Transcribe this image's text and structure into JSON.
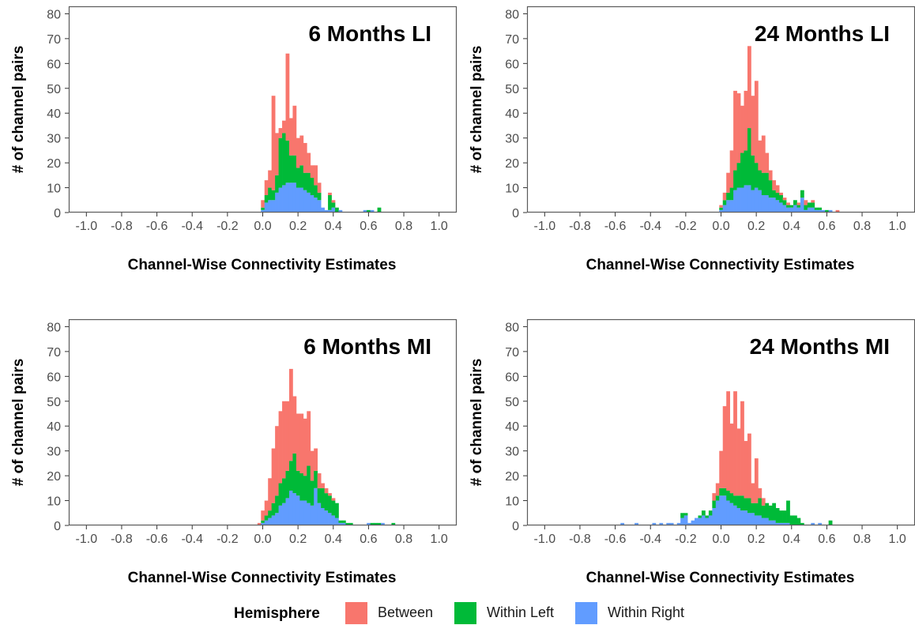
{
  "colors": {
    "Between": "#F8766D",
    "Within Left": "#00BA38",
    "Within Right": "#619CFF"
  },
  "chart_data": [
    {
      "type": "bar",
      "stacked": true,
      "title": "6 Months LI",
      "xlabel": "Channel-Wise Connectivity Estimates",
      "ylabel": "# of channel pairs",
      "xlim": [
        -1.1,
        1.1
      ],
      "ylim": [
        0,
        83
      ],
      "bin_width": 0.02,
      "grid": false,
      "xticks": [
        "-1.0",
        "-0.8",
        "-0.6",
        "-0.4",
        "-0.2",
        "0.0",
        "0.2",
        "0.4",
        "0.6",
        "0.8",
        "1.0"
      ],
      "yticks": [
        "0",
        "10",
        "20",
        "30",
        "40",
        "50",
        "60",
        "70",
        "80"
      ],
      "x": [
        0.0,
        0.02,
        0.04,
        0.06,
        0.08,
        0.1,
        0.12,
        0.14,
        0.16,
        0.18,
        0.2,
        0.22,
        0.24,
        0.26,
        0.28,
        0.3,
        0.32,
        0.34,
        0.36,
        0.38,
        0.4,
        0.42,
        0.44,
        0.54,
        0.56,
        0.58,
        0.6,
        0.62,
        0.64,
        0.66
      ],
      "series": [
        {
          "name": "Within Right",
          "values": [
            1,
            4,
            5,
            5,
            8,
            10,
            11,
            12,
            12,
            12,
            10,
            10,
            9,
            8,
            7,
            6,
            5,
            2,
            1,
            1,
            2,
            0,
            1,
            0,
            0,
            1,
            0,
            1,
            0,
            0
          ]
        },
        {
          "name": "Within Left",
          "values": [
            1,
            3,
            5,
            4,
            7,
            20,
            21,
            17,
            11,
            11,
            8,
            9,
            7,
            8,
            7,
            5,
            3,
            0,
            0,
            6,
            2,
            2,
            0,
            0,
            0,
            0,
            1,
            0,
            0,
            2
          ]
        },
        {
          "name": "Between",
          "values": [
            3,
            6,
            7,
            38,
            17,
            4,
            5,
            35,
            15,
            20,
            12,
            12,
            12,
            8,
            5,
            8,
            4,
            0,
            0,
            1,
            1,
            0,
            0,
            0,
            0,
            0,
            0,
            0,
            0,
            0
          ]
        }
      ]
    },
    {
      "type": "bar",
      "stacked": true,
      "title": "24 Months LI",
      "xlabel": "Channel-Wise Connectivity Estimates",
      "ylabel": "# of channel pairs",
      "xlim": [
        -1.1,
        1.1
      ],
      "ylim": [
        0,
        83
      ],
      "bin_width": 0.02,
      "grid": false,
      "xticks": [
        "-1.0",
        "-0.8",
        "-0.6",
        "-0.4",
        "-0.2",
        "0.0",
        "0.2",
        "0.4",
        "0.6",
        "0.8",
        "1.0"
      ],
      "yticks": [
        "0",
        "10",
        "20",
        "30",
        "40",
        "50",
        "60",
        "70",
        "80"
      ],
      "x": [
        0.0,
        0.02,
        0.04,
        0.06,
        0.08,
        0.1,
        0.12,
        0.14,
        0.16,
        0.18,
        0.2,
        0.22,
        0.24,
        0.26,
        0.28,
        0.3,
        0.32,
        0.34,
        0.36,
        0.38,
        0.4,
        0.42,
        0.44,
        0.46,
        0.48,
        0.5,
        0.52,
        0.54,
        0.56,
        0.58,
        0.6,
        0.62,
        0.64,
        0.66
      ],
      "series": [
        {
          "name": "Within Right",
          "values": [
            1,
            3,
            5,
            5,
            9,
            10,
            10,
            11,
            11,
            9,
            10,
            9,
            7,
            7,
            6,
            6,
            5,
            4,
            3,
            2,
            2,
            3,
            2,
            6,
            1,
            2,
            2,
            1,
            1,
            1,
            0,
            1,
            0,
            0
          ]
        },
        {
          "name": "Within Left",
          "values": [
            1,
            2,
            3,
            5,
            8,
            10,
            14,
            14,
            23,
            14,
            10,
            8,
            9,
            9,
            7,
            3,
            3,
            3,
            2,
            1,
            1,
            2,
            1,
            3,
            2,
            2,
            2,
            1,
            1,
            0,
            1,
            0,
            0,
            0
          ]
        },
        {
          "name": "Between",
          "values": [
            1,
            3,
            8,
            15,
            32,
            28,
            19,
            24,
            33,
            24,
            33,
            12,
            15,
            8,
            4,
            4,
            3,
            1,
            1,
            1,
            0,
            0,
            1,
            0,
            2,
            0,
            1,
            0,
            0,
            0,
            0,
            0,
            0,
            1
          ]
        }
      ]
    },
    {
      "type": "bar",
      "stacked": true,
      "title": "6 Months MI",
      "xlabel": "Channel-Wise Connectivity Estimates",
      "ylabel": "# of channel pairs",
      "xlim": [
        -1.1,
        1.1
      ],
      "ylim": [
        0,
        83
      ],
      "bin_width": 0.02,
      "grid": false,
      "xticks": [
        "-1.0",
        "-0.8",
        "-0.6",
        "-0.4",
        "-0.2",
        "0.0",
        "0.2",
        "0.4",
        "0.6",
        "0.8",
        "1.0"
      ],
      "yticks": [
        "0",
        "10",
        "20",
        "30",
        "40",
        "50",
        "60",
        "70",
        "80"
      ],
      "x": [
        -0.02,
        0.0,
        0.02,
        0.04,
        0.06,
        0.08,
        0.1,
        0.12,
        0.14,
        0.16,
        0.18,
        0.2,
        0.22,
        0.24,
        0.26,
        0.28,
        0.3,
        0.32,
        0.34,
        0.36,
        0.38,
        0.4,
        0.42,
        0.44,
        0.46,
        0.48,
        0.5,
        0.6,
        0.62,
        0.64,
        0.66,
        0.68,
        0.74
      ],
      "series": [
        {
          "name": "Within Right",
          "values": [
            0,
            1,
            2,
            3,
            4,
            5,
            8,
            9,
            11,
            14,
            13,
            12,
            10,
            10,
            9,
            8,
            15,
            9,
            7,
            6,
            5,
            4,
            3,
            1,
            1,
            0,
            0,
            1,
            0,
            0,
            0,
            1,
            0
          ]
        },
        {
          "name": "Within Left",
          "values": [
            0,
            1,
            2,
            3,
            5,
            7,
            9,
            10,
            11,
            12,
            16,
            10,
            11,
            10,
            15,
            10,
            7,
            6,
            8,
            7,
            7,
            6,
            6,
            1,
            1,
            1,
            1,
            0,
            1,
            1,
            1,
            0,
            1
          ]
        },
        {
          "name": "Between",
          "values": [
            1,
            4,
            6,
            13,
            22,
            28,
            29,
            31,
            28,
            37,
            23,
            23,
            24,
            23,
            22,
            12,
            9,
            6,
            2,
            2,
            1,
            1,
            0,
            0,
            0,
            0,
            0,
            0,
            0,
            0,
            0,
            0,
            0
          ]
        }
      ]
    },
    {
      "type": "bar",
      "stacked": true,
      "title": "24 Months MI",
      "xlabel": "Channel-Wise Connectivity Estimates",
      "ylabel": "# of channel pairs",
      "xlim": [
        -1.1,
        1.1
      ],
      "ylim": [
        0,
        83
      ],
      "bin_width": 0.02,
      "grid": false,
      "xticks": [
        "-1.0",
        "-0.8",
        "-0.6",
        "-0.4",
        "-0.2",
        "0.0",
        "0.2",
        "0.4",
        "0.6",
        "0.8",
        "1.0"
      ],
      "yticks": [
        "0",
        "10",
        "20",
        "30",
        "40",
        "50",
        "60",
        "70",
        "80"
      ],
      "x": [
        -0.56,
        -0.48,
        -0.38,
        -0.34,
        -0.3,
        -0.28,
        -0.24,
        -0.22,
        -0.2,
        -0.18,
        -0.16,
        -0.14,
        -0.12,
        -0.1,
        -0.08,
        -0.06,
        -0.04,
        -0.02,
        0.0,
        0.02,
        0.04,
        0.06,
        0.08,
        0.1,
        0.12,
        0.14,
        0.16,
        0.18,
        0.2,
        0.22,
        0.24,
        0.26,
        0.28,
        0.3,
        0.32,
        0.34,
        0.36,
        0.38,
        0.4,
        0.42,
        0.44,
        0.46,
        0.52,
        0.56,
        0.62
      ],
      "series": [
        {
          "name": "Within Right",
          "values": [
            1,
            1,
            1,
            1,
            1,
            1,
            1,
            3,
            4,
            1,
            2,
            3,
            3,
            4,
            3,
            4,
            7,
            10,
            12,
            12,
            10,
            9,
            8,
            7,
            6,
            6,
            5,
            5,
            4,
            4,
            3,
            3,
            2,
            2,
            1,
            1,
            1,
            1,
            0,
            0,
            0,
            0,
            1,
            1,
            0
          ]
        },
        {
          "name": "Within Left",
          "values": [
            0,
            0,
            0,
            0,
            0,
            0,
            0,
            2,
            1,
            0,
            0,
            0,
            1,
            2,
            1,
            2,
            3,
            2,
            3,
            3,
            4,
            4,
            4,
            5,
            6,
            5,
            6,
            4,
            5,
            7,
            5,
            6,
            6,
            7,
            6,
            5,
            5,
            9,
            4,
            4,
            3,
            1,
            0,
            0,
            2
          ]
        },
        {
          "name": "Between",
          "values": [
            0,
            0,
            0,
            0,
            0,
            0,
            0,
            0,
            0,
            0,
            0,
            0,
            0,
            0,
            0,
            0,
            3,
            5,
            15,
            33,
            40,
            28,
            42,
            27,
            38,
            23,
            26,
            8,
            18,
            4,
            3,
            0,
            0,
            0,
            0,
            0,
            0,
            0,
            0,
            0,
            0,
            0,
            0,
            0,
            0
          ]
        }
      ]
    }
  ],
  "legend": {
    "title": "Hemisphere",
    "items": [
      "Between",
      "Within Left",
      "Within Right"
    ]
  }
}
